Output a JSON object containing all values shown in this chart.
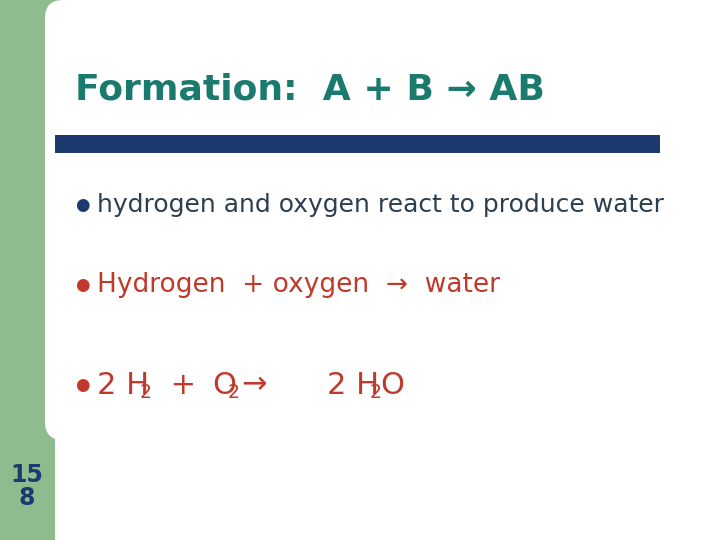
{
  "bg_color": "#ffffff",
  "left_bar_color": "#8fbc8f",
  "top_rect_color": "#8fbc8f",
  "white_roundrect_color": "#ffffff",
  "title_text": "Formation:  A + B → AB",
  "title_color": "#1a7a6e",
  "title_fontsize": 26,
  "divider_color": "#1c3a6e",
  "bullet1_color": "#1c3a6e",
  "bullet2_color": "#c0392b",
  "bullet3_color": "#c0392b",
  "line1_text": "hydrogen and oxygen react to produce water",
  "line1_color": "#2c3e50",
  "line1_fontsize": 18,
  "line2_color": "#c0392b",
  "line2_fontsize": 19,
  "line3_color": "#c0392b",
  "line3_fontsize": 22,
  "page_num_top": "15",
  "page_num_bot": "8",
  "page_num_color": "#1c3a6e",
  "page_num_fontsize": 17
}
